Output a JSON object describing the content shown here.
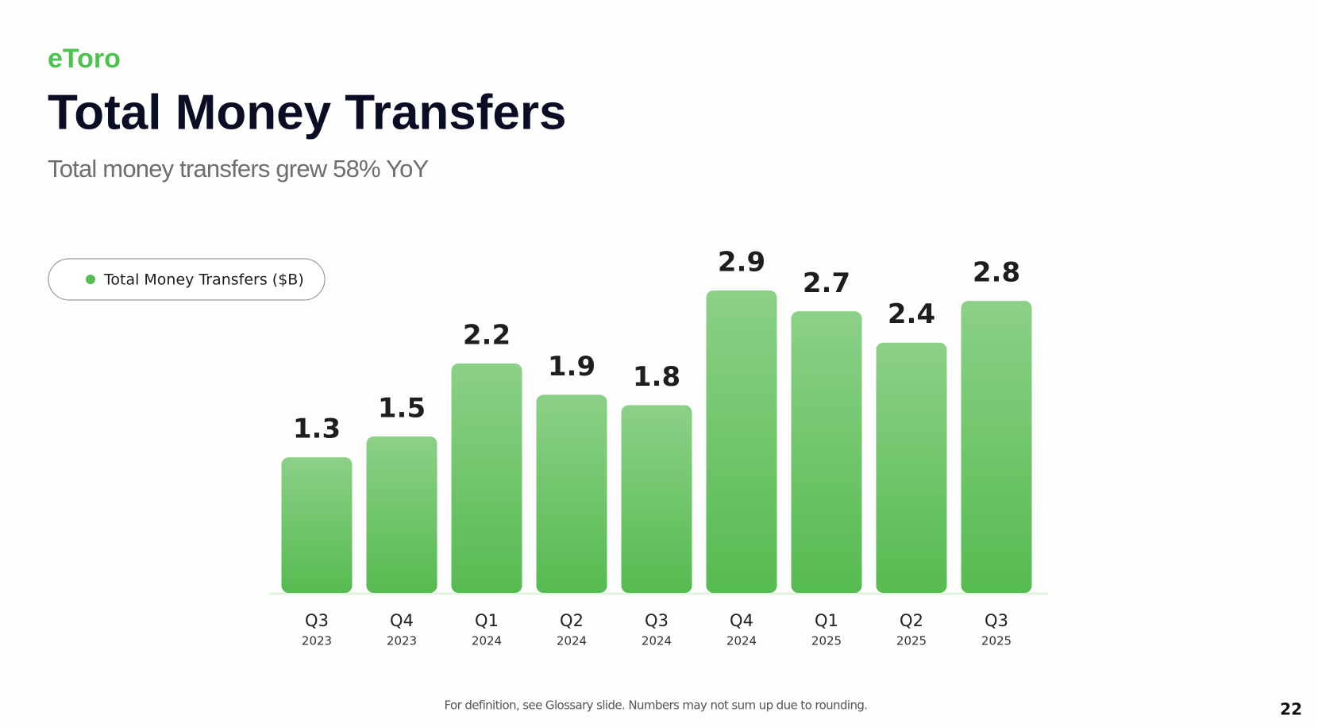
{
  "logo": "eToro",
  "chart_data": {
    "type": "bar",
    "title": "Total Money Transfers",
    "subtitle": "Total money transfers grew 58% YoY",
    "categories": [
      [
        "Q3",
        "2023"
      ],
      [
        "Q4",
        "2023"
      ],
      [
        "Q1",
        "2024"
      ],
      [
        "Q2",
        "2024"
      ],
      [
        "Q3",
        "2024"
      ],
      [
        "Q4",
        "2024"
      ],
      [
        "Q1",
        "2025"
      ],
      [
        "Q2",
        "2025"
      ],
      [
        "Q3",
        "2025"
      ]
    ],
    "series": [
      {
        "name": "Total Money Transfers ($B)",
        "color": "#56bb50",
        "values": [
          1.3,
          1.5,
          2.2,
          1.9,
          1.8,
          2.9,
          2.7,
          2.4,
          2.8
        ]
      }
    ],
    "footnote": "For definition, see Glossary slide. Numbers may not sum up due to rounding."
  },
  "page_number": "22"
}
